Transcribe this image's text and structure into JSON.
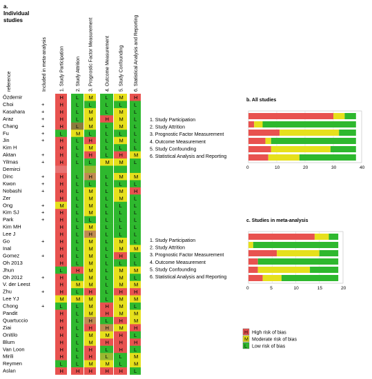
{
  "panel_a": {
    "letter": "a.",
    "title_line1": "Individual",
    "title_line2": "studies",
    "ref_header": "reference",
    "meta_header": "Included in meta-analysis",
    "domain_headers": [
      "1. Study Participation",
      "2. Study Attrition",
      "3. Prognostic Factor Measurement",
      "4. Outcome Measurement",
      "5. Study Confounding",
      "6. Statistical Analysis and Reporting"
    ],
    "colors": {
      "H": "#e8524f",
      "M": "#e6e01c",
      "L": "#2eb82e",
      "MH": "#c08a50",
      "LM": "#98b830",
      "LH": "#8c7c3c",
      "none": "#e87474"
    },
    "studies": [
      {
        "ref": "Özdemir",
        "meta": "",
        "r": [
          "H",
          "L",
          "M",
          "L",
          "M",
          "H"
        ],
        "c": [
          "H",
          "L",
          "M",
          "L",
          "M",
          "H"
        ]
      },
      {
        "ref": "Choi",
        "meta": "+",
        "r": [
          "H",
          "L",
          "L",
          "L",
          "L",
          "L"
        ],
        "c": [
          "H",
          "L",
          "L",
          "L",
          "L",
          "L"
        ]
      },
      {
        "ref": "Kasahara",
        "meta": "+",
        "r": [
          "H",
          "L",
          "M",
          "L",
          "M",
          "L"
        ],
        "c": [
          "H",
          "L",
          "M",
          "L",
          "M",
          "L"
        ]
      },
      {
        "ref": "Araz",
        "meta": "+",
        "r": [
          "H",
          "L",
          "M",
          "H",
          "M",
          "L"
        ],
        "c": [
          "H",
          "L",
          "M",
          "H",
          "M",
          "L"
        ]
      },
      {
        "ref": "Chang",
        "meta": "+",
        "r": [
          "H",
          "L",
          "M",
          "L",
          "M",
          "L"
        ],
        "c": [
          "H",
          "LH",
          "M",
          "L",
          "M",
          "L"
        ]
      },
      {
        "ref": "Fu",
        "meta": "+",
        "r": [
          "L",
          "M",
          "L",
          "L",
          "L",
          "L"
        ],
        "c": [
          "L",
          "M",
          "L",
          "L",
          "L",
          "L"
        ]
      },
      {
        "ref": "Jin",
        "meta": "+",
        "r": [
          "H",
          "L",
          "H",
          "L",
          "M",
          "L"
        ],
        "c": [
          "H",
          "L",
          "H",
          "L",
          "M",
          "L"
        ]
      },
      {
        "ref": "Kim H",
        "meta": "",
        "r": [
          "H",
          "L",
          "M",
          "L",
          "L",
          "L"
        ],
        "c": [
          "H",
          "L",
          "M",
          "L",
          "L",
          "L"
        ]
      },
      {
        "ref": "Aktan",
        "meta": "+",
        "r": [
          "H",
          "L",
          "H",
          "L",
          "H",
          "M"
        ],
        "c": [
          "H",
          "L",
          "H",
          "L",
          "H",
          "M"
        ]
      },
      {
        "ref": "Yilmas",
        "meta": "+",
        "r": [
          "H",
          "L",
          "L",
          "M",
          "M",
          "L"
        ],
        "c": [
          "H",
          "L",
          "L",
          "M",
          "M",
          "L"
        ]
      },
      {
        "ref": "Demirci",
        "meta": "",
        "r": [
          "",
          "",
          "",
          "",
          "",
          ""
        ],
        "c": [
          "none",
          "L",
          "LM",
          "L",
          "L",
          "L"
        ]
      },
      {
        "ref": "Dinc",
        "meta": "+",
        "r": [
          "H",
          "L",
          "H",
          "L",
          "M",
          "M"
        ],
        "c": [
          "H",
          "L",
          "MH",
          "L",
          "M",
          "M"
        ]
      },
      {
        "ref": "Kwon",
        "meta": "+",
        "r": [
          "H",
          "L",
          "L",
          "L",
          "L",
          "L"
        ],
        "c": [
          "H",
          "L",
          "L",
          "L",
          "L",
          "L"
        ]
      },
      {
        "ref": "Nobashi",
        "meta": "+",
        "r": [
          "H",
          "L",
          "M",
          "L",
          "M",
          "H"
        ],
        "c": [
          "H",
          "L",
          "M",
          "L",
          "M",
          "H"
        ]
      },
      {
        "ref": "Zer",
        "meta": "",
        "r": [
          "H",
          "L",
          "M",
          "L",
          "M",
          "L"
        ],
        "c": [
          "H",
          "L",
          "M",
          "L",
          "M",
          "L"
        ]
      },
      {
        "ref": "Ong",
        "meta": "+",
        "r": [
          "M",
          "L",
          "M",
          "L",
          "L",
          "L"
        ],
        "c": [
          "M",
          "L",
          "M",
          "L",
          "L",
          "L"
        ]
      },
      {
        "ref": "Kim SJ",
        "meta": "+",
        "r": [
          "H",
          "L",
          "M",
          "L",
          "L",
          "L"
        ],
        "c": [
          "H",
          "L",
          "M",
          "L",
          "L",
          "L"
        ]
      },
      {
        "ref": "Park",
        "meta": "+",
        "r": [
          "H",
          "L",
          "L",
          "L",
          "L",
          "L"
        ],
        "c": [
          "H",
          "L",
          "L",
          "L",
          "L",
          "L"
        ]
      },
      {
        "ref": "Kim MH",
        "meta": "",
        "r": [
          "H",
          "L",
          "M",
          "L",
          "L",
          "L"
        ],
        "c": [
          "H",
          "L",
          "M",
          "L",
          "L",
          "L"
        ]
      },
      {
        "ref": "Lee J",
        "meta": "",
        "r": [
          "H",
          "L",
          "H",
          "L",
          "L",
          "L"
        ],
        "c": [
          "H",
          "L",
          "MH",
          "L",
          "L",
          "L"
        ]
      },
      {
        "ref": "Go",
        "meta": "+",
        "r": [
          "H",
          "L",
          "M",
          "L",
          "M",
          "L"
        ],
        "c": [
          "H",
          "L",
          "M",
          "L",
          "M",
          "L"
        ]
      },
      {
        "ref": "Inal",
        "meta": "",
        "r": [
          "H",
          "L",
          "M",
          "L",
          "M",
          "M"
        ],
        "c": [
          "H",
          "L",
          "M",
          "L",
          "M",
          "M"
        ]
      },
      {
        "ref": "Gomez",
        "meta": "+",
        "r": [
          "H",
          "L",
          "M",
          "L",
          "H",
          "L"
        ],
        "c": [
          "H",
          "L",
          "M",
          "L",
          "H",
          "L"
        ]
      },
      {
        "ref": "Oh 2013",
        "meta": "",
        "r": [
          "H",
          "L",
          "M",
          "L",
          "L",
          "L"
        ],
        "c": [
          "H",
          "L",
          "M",
          "L",
          "L",
          "L"
        ]
      },
      {
        "ref": "Jhun",
        "meta": "",
        "r": [
          "L",
          "H",
          "M",
          "L",
          "M",
          "M"
        ],
        "c": [
          "L",
          "H",
          "M",
          "L",
          "M",
          "M"
        ]
      },
      {
        "ref": "Oh 2012",
        "meta": "+",
        "r": [
          "H",
          "L",
          "M",
          "L",
          "M",
          "L"
        ],
        "c": [
          "H",
          "L",
          "M",
          "L",
          "M",
          "L"
        ]
      },
      {
        "ref": "V. der Leest",
        "meta": "",
        "r": [
          "H",
          "M",
          "M",
          "L",
          "M",
          "M"
        ],
        "c": [
          "H",
          "M",
          "M",
          "L",
          "M",
          "M"
        ]
      },
      {
        "ref": "Zhu",
        "meta": "+",
        "r": [
          "H",
          "L",
          "H",
          "L",
          "H",
          "H"
        ],
        "c": [
          "H",
          "L",
          "H",
          "L",
          "H",
          "H"
        ]
      },
      {
        "ref": "Lee YJ",
        "meta": "",
        "r": [
          "M",
          "M",
          "M",
          "L",
          "M",
          "M"
        ],
        "c": [
          "M",
          "M",
          "M",
          "L",
          "M",
          "M"
        ]
      },
      {
        "ref": "Chong",
        "meta": "+",
        "r": [
          "L",
          "L",
          "M",
          "H",
          "M",
          "L"
        ],
        "c": [
          "L",
          "L",
          "M",
          "H",
          "M",
          "L"
        ]
      },
      {
        "ref": "Pandit",
        "meta": "",
        "r": [
          "H",
          "L",
          "M",
          "H",
          "M",
          "M"
        ],
        "c": [
          "H",
          "L",
          "M",
          "H",
          "M",
          "M"
        ]
      },
      {
        "ref": "Quartuccio",
        "meta": "",
        "r": [
          "H",
          "L",
          "H",
          "L",
          "H",
          "M"
        ],
        "c": [
          "H",
          "L",
          "MH",
          "L",
          "H",
          "M"
        ]
      },
      {
        "ref": "Ziai",
        "meta": "",
        "r": [
          "H",
          "L",
          "H",
          "H",
          "M",
          "H"
        ],
        "c": [
          "H",
          "L",
          "H",
          "MH",
          "M",
          "H"
        ]
      },
      {
        "ref": "Onitilo",
        "meta": "",
        "r": [
          "H",
          "L",
          "M",
          "M",
          "H",
          "L"
        ],
        "c": [
          "H",
          "L",
          "M",
          "M",
          "H",
          "L"
        ]
      },
      {
        "ref": "Blum",
        "meta": "",
        "r": [
          "H",
          "L",
          "M",
          "H",
          "H",
          "H"
        ],
        "c": [
          "H",
          "L",
          "M",
          "H",
          "H",
          "H"
        ]
      },
      {
        "ref": "Van Loon",
        "meta": "",
        "r": [
          "H",
          "L",
          "H",
          "L",
          "H",
          "L"
        ],
        "c": [
          "H",
          "L",
          "H",
          "L",
          "H",
          "L"
        ]
      },
      {
        "ref": "Mirili",
        "meta": "",
        "r": [
          "H",
          "L",
          "H",
          "L",
          "L",
          "M"
        ],
        "c": [
          "H",
          "L",
          "H",
          "LM",
          "L",
          "M"
        ]
      },
      {
        "ref": "Reymen",
        "meta": "",
        "r": [
          "L",
          "L",
          "M",
          "M",
          "L",
          "M"
        ],
        "c": [
          "L",
          "L",
          "M",
          "M",
          "L",
          "M"
        ]
      },
      {
        "ref": "Aslan",
        "meta": "",
        "r": [
          "H",
          "H",
          "H",
          "H",
          "H",
          "L"
        ],
        "c": [
          "H",
          "H",
          "H",
          "H",
          "H",
          "L"
        ]
      }
    ]
  },
  "legend": {
    "items": [
      {
        "code": "H",
        "label": "High risk of bias",
        "color": "#e8524f"
      },
      {
        "code": "M",
        "label": "Moderate risk of bias",
        "color": "#e6e01c"
      },
      {
        "code": "L",
        "label": "Low risk of bias",
        "color": "#2eb82e"
      }
    ]
  },
  "chart_data": [
    {
      "type": "bar",
      "orientation": "horizontal-stacked",
      "title": "b. All studies",
      "categories": [
        "1. Study Participation",
        "2. Study Attrition",
        "3. Prognostic Factor Measurement",
        "4. Outcome Measurement",
        "5. Study Confounding",
        "6. Statistical Analysis and Reporting"
      ],
      "series": [
        {
          "name": "High risk of bias",
          "color": "#e8524f",
          "values": [
            30,
            2,
            11,
            6,
            8,
            7
          ]
        },
        {
          "name": "Moderate risk of bias",
          "color": "#e6e01c",
          "values": [
            4,
            3,
            21,
            2,
            21,
            11
          ]
        },
        {
          "name": "Low risk of bias",
          "color": "#2eb82e",
          "values": [
            4,
            33,
            6,
            30,
            9,
            20
          ]
        }
      ],
      "xlim": [
        0,
        40
      ],
      "xticks": [
        0,
        10,
        20,
        30,
        40
      ],
      "grid": true
    },
    {
      "type": "bar",
      "orientation": "horizontal-stacked",
      "title": "c. Studies in meta-analysis",
      "categories": [
        "1. Study Participation",
        "2. Study Attrition",
        "3. Prognostic Factor Measurement",
        "4. Outcome Measurement",
        "5. Study Confounding",
        "6. Statistical Analysis and Reporting"
      ],
      "series": [
        {
          "name": "High risk of bias",
          "color": "#e8524f",
          "values": [
            14,
            0,
            6,
            2,
            2,
            3
          ]
        },
        {
          "name": "Moderate risk of bias",
          "color": "#e6e01c",
          "values": [
            3,
            1,
            9,
            0,
            11,
            4
          ]
        },
        {
          "name": "Low risk of bias",
          "color": "#2eb82e",
          "values": [
            2,
            18,
            4,
            17,
            6,
            12
          ]
        }
      ],
      "xlim": [
        0,
        20
      ],
      "xticks": [
        0,
        5,
        10,
        15,
        20
      ],
      "grid": true
    }
  ]
}
